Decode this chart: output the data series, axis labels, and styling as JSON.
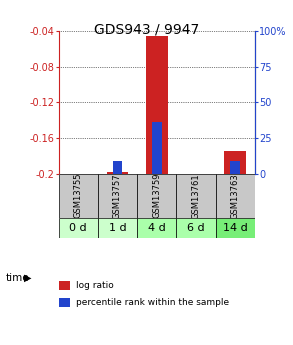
{
  "title": "GDS943 / 9947",
  "samples": [
    "GSM13755",
    "GSM13757",
    "GSM13759",
    "GSM13761",
    "GSM13763"
  ],
  "time_labels": [
    "0 d",
    "1 d",
    "4 d",
    "6 d",
    "14 d"
  ],
  "log_ratio": [
    0.0,
    -0.198,
    -0.045,
    0.0,
    -0.175
  ],
  "percentile_rank": [
    0.0,
    9.0,
    36.0,
    0.0,
    9.0
  ],
  "ylim_left": [
    -0.2,
    -0.04
  ],
  "ylim_right": [
    0,
    100
  ],
  "yticks_left": [
    -0.2,
    -0.16,
    -0.12,
    -0.08,
    -0.04
  ],
  "yticks_right": [
    0,
    25,
    50,
    75,
    100
  ],
  "bar_width": 0.55,
  "bar_color_red": "#cc2222",
  "bar_color_blue": "#2244cc",
  "sample_bg_color": "#c8c8c8",
  "time_bg_colors": [
    "#ccffcc",
    "#ccffcc",
    "#aaffaa",
    "#aaffaa",
    "#77ee77"
  ],
  "legend_red_label": "log ratio",
  "legend_blue_label": "percentile rank within the sample",
  "title_fontsize": 10,
  "tick_fontsize": 7,
  "left_axis_color": "#cc2222",
  "right_axis_color": "#2244cc",
  "sample_label_fontsize": 6,
  "time_label_fontsize": 8
}
